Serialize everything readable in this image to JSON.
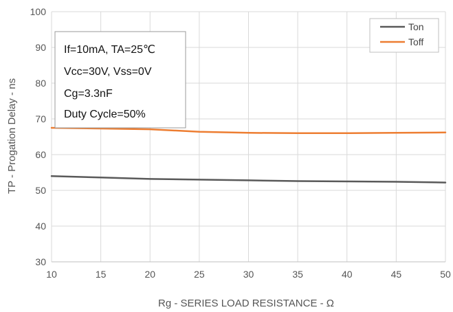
{
  "chart_data": {
    "type": "line",
    "title": "",
    "xlabel": "Rg  - SERIES LOAD RESISTANCE   - Ω",
    "ylabel": "TP - Progation Delay - ns",
    "xlim": [
      10,
      50
    ],
    "ylim": [
      30,
      100
    ],
    "x_ticks": [
      "10",
      "15",
      "20",
      "25",
      "30",
      "35",
      "40",
      "45",
      "50"
    ],
    "y_ticks": [
      "30",
      "40",
      "50",
      "60",
      "70",
      "80",
      "90",
      "100"
    ],
    "grid": true,
    "legend_position": "top-right",
    "x": [
      10,
      15,
      20,
      25,
      30,
      35,
      40,
      45,
      50
    ],
    "series": [
      {
        "name": "Ton",
        "color": "#595959",
        "values": [
          54.0,
          53.6,
          53.2,
          53.0,
          52.8,
          52.6,
          52.5,
          52.4,
          52.2
        ]
      },
      {
        "name": "Toff",
        "color": "#ED7D31",
        "values": [
          67.5,
          67.3,
          67.1,
          66.4,
          66.1,
          66.0,
          66.0,
          66.1,
          66.2
        ]
      }
    ],
    "annotations": [
      "If=10mA, TA=25℃",
      "Vcc=30V, Vss=0V",
      "Cg=3.3nF",
      "Duty Cycle=50%"
    ]
  }
}
